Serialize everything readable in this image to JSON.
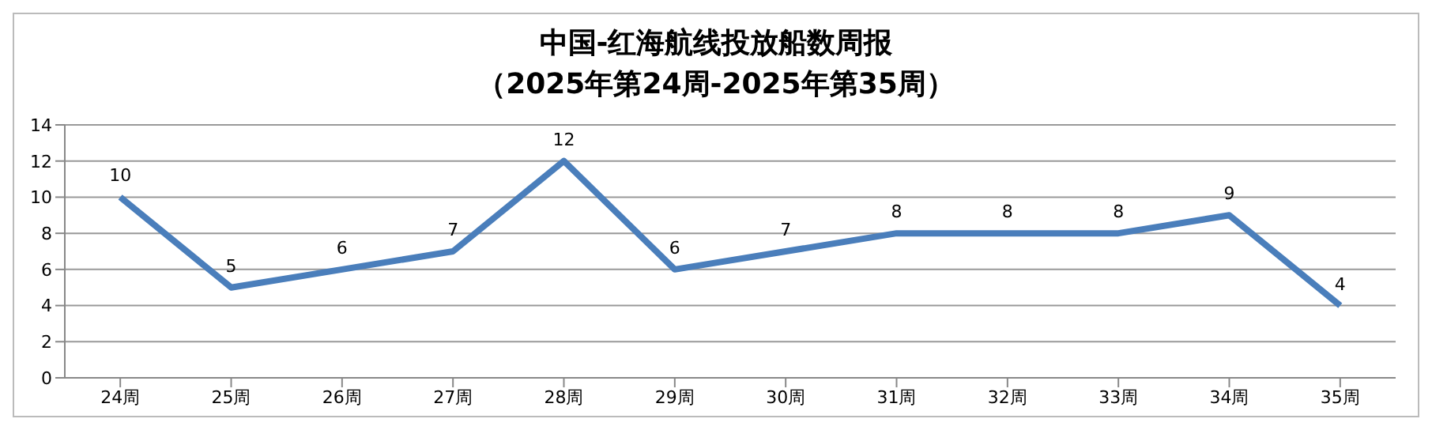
{
  "chart_data": {
    "type": "line",
    "title": "中国-红海航线投放船数周报",
    "subtitle": "（2025年第24周-2025年第35周）",
    "categories": [
      "24周",
      "25周",
      "26周",
      "27周",
      "28周",
      "29周",
      "30周",
      "31周",
      "32周",
      "33周",
      "34周",
      "35周"
    ],
    "series": [
      {
        "color": "#4a7ebb",
        "values": [
          10,
          5,
          6,
          7,
          12,
          6,
          7,
          8,
          8,
          8,
          9,
          4
        ]
      }
    ],
    "ylim": [
      0,
      14
    ],
    "yticks": [
      0,
      2,
      4,
      6,
      8,
      10,
      12,
      14
    ],
    "grid": "y",
    "legend": false,
    "marker": "none",
    "line_style": "solid",
    "data_labels": true
  }
}
